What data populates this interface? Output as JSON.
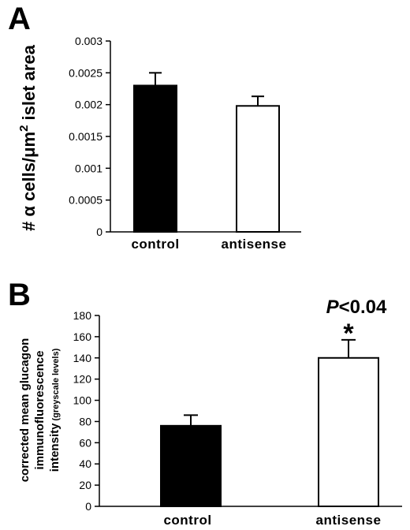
{
  "chart_data": [
    {
      "type": "bar",
      "panel_label": "A",
      "categories": [
        "control",
        "antisense"
      ],
      "values": [
        0.0023,
        0.00198
      ],
      "errors": [
        0.0002,
        0.00015
      ],
      "bar_colors": [
        "#000000",
        "#ffffff"
      ],
      "ylabel_prefix": "# α cells/μm",
      "ylabel_superscript": "2",
      "ylabel_suffix": " islet area",
      "ylim": [
        0,
        0.003
      ],
      "yticks": [
        "0.003",
        "0.0025",
        "0.002",
        "0.0015",
        "0.001",
        "0.0005",
        "0"
      ],
      "grid": false
    },
    {
      "type": "bar",
      "panel_label": "B",
      "categories": [
        "control",
        "antisense"
      ],
      "values": [
        76,
        140
      ],
      "errors": [
        10,
        17
      ],
      "bar_colors": [
        "#000000",
        "#ffffff"
      ],
      "ylabel_lines": [
        "corrected mean glucagon",
        "immunofluorescence"
      ],
      "ylabel_line3_main": "intensity",
      "ylabel_line3_small": " (greyscale levels)",
      "ylim": [
        0,
        180
      ],
      "yticks": [
        "180",
        "160",
        "140",
        "120",
        "100",
        "80",
        "60",
        "40",
        "20",
        "0"
      ],
      "annotation_p": "P",
      "annotation_rest": "<0.04",
      "annotation_star": "*",
      "grid": false
    }
  ]
}
